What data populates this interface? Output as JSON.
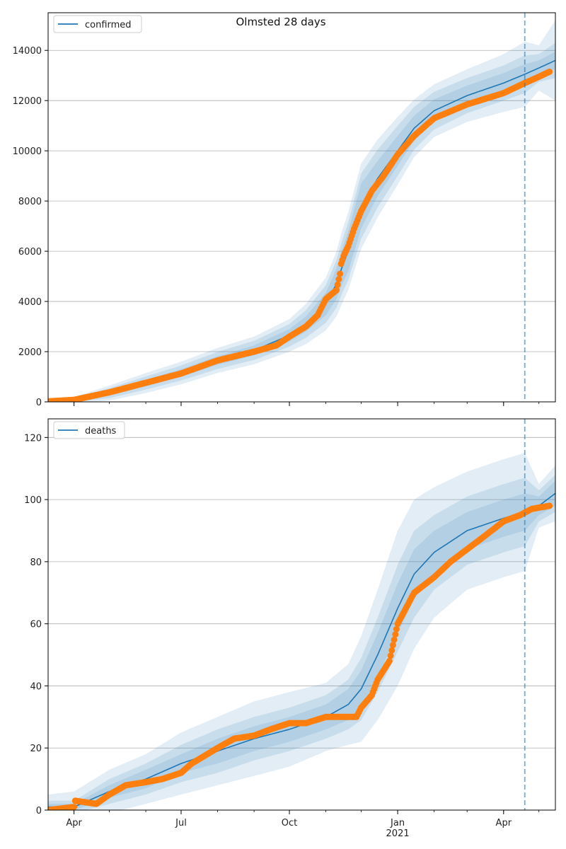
{
  "title": "Olmsted 28 days",
  "colors": {
    "model": "#1f77b4",
    "observed": "#ff7f0e",
    "band": "#1f77b4",
    "grid": "#b0b0b0",
    "vline": "#1f77b4"
  },
  "x_axis": {
    "start": "2020-03-10",
    "end": "2021-05-15",
    "ticks": [
      {
        "date": "2020-04-01",
        "label": "Apr"
      },
      {
        "date": "2020-07-01",
        "label": "Jul"
      },
      {
        "date": "2020-10-01",
        "label": "Oct"
      },
      {
        "date": "2021-01-01",
        "label": "Jan"
      },
      {
        "date": "2021-04-01",
        "label": "Apr"
      }
    ],
    "year_label": "2021",
    "forecast_start": "2021-04-19"
  },
  "chart_data": [
    {
      "type": "line",
      "legend": "confirmed",
      "legend_position": "top-left",
      "grid": true,
      "ylim": [
        0,
        15500
      ],
      "yticks": [
        0,
        2000,
        4000,
        6000,
        8000,
        10000,
        12000,
        14000
      ],
      "x": [
        "2020-03-10",
        "2020-04-01",
        "2020-05-01",
        "2020-06-01",
        "2020-07-01",
        "2020-08-01",
        "2020-09-01",
        "2020-10-01",
        "2020-10-15",
        "2020-11-01",
        "2020-11-10",
        "2020-11-15",
        "2020-11-20",
        "2020-12-01",
        "2020-12-15",
        "2021-01-01",
        "2021-01-15",
        "2021-02-01",
        "2021-03-01",
        "2021-04-01",
        "2021-04-19",
        "2021-05-01",
        "2021-05-15"
      ],
      "model": [
        20,
        70,
        350,
        750,
        1150,
        1650,
        2050,
        2650,
        3100,
        3900,
        4700,
        5400,
        6000,
        7800,
        8900,
        10000,
        10900,
        11600,
        12200,
        12700,
        13050,
        13300,
        13600
      ],
      "band_inner_width": [
        0,
        40,
        100,
        130,
        150,
        170,
        200,
        250,
        300,
        450,
        600,
        700,
        800,
        900,
        700,
        600,
        500,
        450,
        400,
        400,
        400,
        300,
        350
      ],
      "band_mid_width": [
        0,
        80,
        200,
        260,
        300,
        340,
        380,
        450,
        550,
        750,
        950,
        1050,
        1150,
        1300,
        1150,
        1000,
        850,
        750,
        700,
        700,
        750,
        550,
        700
      ],
      "band_outer_width": [
        0,
        120,
        300,
        400,
        450,
        500,
        550,
        650,
        800,
        1050,
        1300,
        1450,
        1550,
        1700,
        1550,
        1350,
        1150,
        1050,
        1050,
        1150,
        1300,
        900,
        1600
      ],
      "observed_x": [
        "2020-03-10",
        "2020-04-01",
        "2020-05-01",
        "2020-06-01",
        "2020-07-01",
        "2020-08-01",
        "2020-09-01",
        "2020-09-20",
        "2020-10-01",
        "2020-10-15",
        "2020-10-25",
        "2020-11-01",
        "2020-11-10",
        "2020-11-13",
        "2020-11-14",
        "2020-11-16",
        "2020-11-20",
        "2020-11-25",
        "2020-12-01",
        "2020-12-10",
        "2020-12-20",
        "2021-01-01",
        "2021-01-15",
        "2021-02-01",
        "2021-03-01",
        "2021-04-01",
        "2021-04-19",
        "2021-05-01",
        "2021-05-10"
      ],
      "observed": [
        20,
        80,
        380,
        760,
        1130,
        1650,
        2000,
        2250,
        2600,
        3000,
        3450,
        4100,
        4450,
        5100,
        5500,
        5800,
        6200,
        6900,
        7600,
        8400,
        9000,
        9850,
        10600,
        11300,
        11850,
        12300,
        12700,
        12950,
        13150
      ]
    },
    {
      "type": "line",
      "legend": "deaths",
      "legend_position": "top-left",
      "grid": true,
      "ylim": [
        0,
        126
      ],
      "yticks": [
        0,
        20,
        40,
        60,
        80,
        100,
        120
      ],
      "x": [
        "2020-03-10",
        "2020-04-01",
        "2020-05-01",
        "2020-06-01",
        "2020-07-01",
        "2020-08-01",
        "2020-09-01",
        "2020-10-01",
        "2020-11-01",
        "2020-11-20",
        "2020-12-01",
        "2020-12-15",
        "2021-01-01",
        "2021-01-15",
        "2021-02-01",
        "2021-03-01",
        "2021-04-01",
        "2021-04-19",
        "2021-05-01",
        "2021-05-15"
      ],
      "model": [
        1,
        1,
        6,
        10,
        15,
        19,
        23,
        26,
        30,
        34,
        39,
        50,
        65,
        76,
        83,
        90,
        94,
        96,
        98,
        102
      ],
      "band_inner_width": [
        1,
        1,
        2,
        3,
        3,
        4,
        4,
        4,
        4,
        5,
        6,
        7,
        8,
        8,
        7,
        6,
        6,
        6,
        3,
        4
      ],
      "band_mid_width": [
        2,
        2,
        4,
        5,
        6,
        7,
        7,
        7,
        7,
        8,
        10,
        12,
        14,
        14,
        12,
        11,
        11,
        11,
        5,
        6
      ],
      "band_outer_width": [
        4,
        5,
        7,
        8,
        10,
        11,
        12,
        12,
        11,
        13,
        17,
        21,
        25,
        24,
        21,
        19,
        19,
        19,
        7,
        9
      ],
      "observed_x": [
        "2020-03-10",
        "2020-04-01",
        "2020-04-02",
        "2020-04-20",
        "2020-05-01",
        "2020-05-15",
        "2020-06-01",
        "2020-06-15",
        "2020-07-01",
        "2020-07-10",
        "2020-08-01",
        "2020-08-15",
        "2020-09-01",
        "2020-09-15",
        "2020-10-01",
        "2020-10-15",
        "2020-11-01",
        "2020-11-15",
        "2020-11-27",
        "2020-12-01",
        "2020-12-10",
        "2020-12-15",
        "2020-12-25",
        "2021-01-01",
        "2021-01-15",
        "2021-02-01",
        "2021-02-15",
        "2021-03-01",
        "2021-03-15",
        "2021-04-01",
        "2021-04-15",
        "2021-04-25",
        "2021-05-10"
      ],
      "observed": [
        0,
        1,
        3,
        2,
        5,
        8,
        9,
        10,
        12,
        15,
        20,
        23,
        24,
        26,
        28,
        28,
        30,
        30,
        30,
        33,
        37,
        42,
        48,
        60,
        70,
        75,
        80,
        84,
        88,
        93,
        95,
        97,
        98
      ]
    }
  ]
}
